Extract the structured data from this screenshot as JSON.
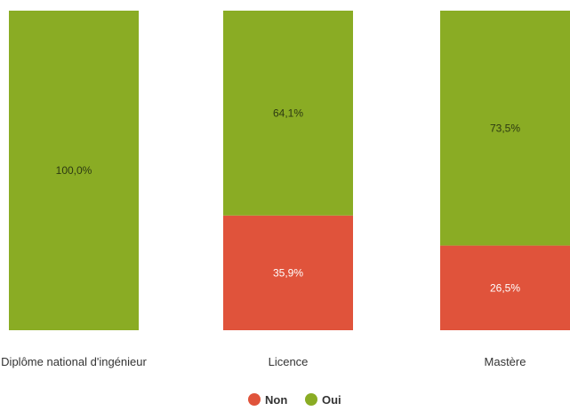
{
  "chart_data": {
    "type": "bar",
    "stacked": true,
    "percent": true,
    "categories": [
      "Diplôme national d'ingénieur",
      "Licence",
      "Mastère"
    ],
    "series": [
      {
        "name": "Non",
        "color": "#e0533b",
        "values": [
          0.0,
          35.9,
          26.5
        ],
        "labels": [
          "",
          "35,9%",
          "26,5%"
        ]
      },
      {
        "name": "Oui",
        "color": "#8aac24",
        "values": [
          100.0,
          64.1,
          73.5
        ],
        "labels": [
          "100,0%",
          "64,1%",
          "73,5%"
        ]
      }
    ],
    "title": "",
    "xlabel": "",
    "ylabel": "",
    "ylim": [
      0,
      100
    ],
    "grid": false,
    "legend": "bottom-center"
  }
}
